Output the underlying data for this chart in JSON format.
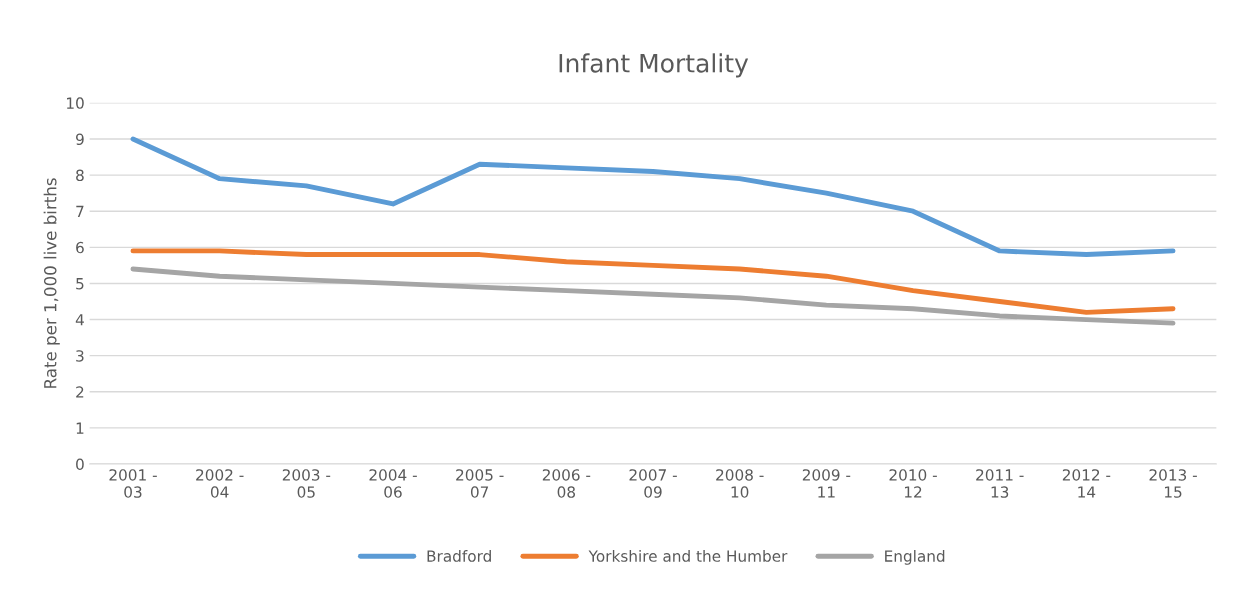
{
  "chart_data": {
    "type": "line",
    "title": "Infant Mortality",
    "ylabel": "Rate per 1,000 live births",
    "categories": [
      "2001 -\n03",
      "2002 -\n04",
      "2003 -\n05",
      "2004 -\n06",
      "2005 -\n07",
      "2006 -\n08",
      "2007 -\n09",
      "2008 -\n10",
      "2009 -\n11",
      "2010 -\n12",
      "2011 -\n13",
      "2012 -\n14",
      "2013 -\n15"
    ],
    "series": [
      {
        "name": "Bradford",
        "color": "#5b9bd5",
        "values": [
          9.0,
          7.9,
          7.7,
          7.2,
          8.3,
          8.2,
          8.1,
          7.9,
          7.5,
          7.0,
          5.9,
          5.8,
          5.9
        ]
      },
      {
        "name": "Yorkshire and the Humber",
        "color": "#ed7d31",
        "values": [
          5.9,
          5.9,
          5.8,
          5.8,
          5.8,
          5.6,
          5.5,
          5.4,
          5.2,
          4.8,
          4.5,
          4.2,
          4.3
        ]
      },
      {
        "name": "England",
        "color": "#a5a5a5",
        "values": [
          5.4,
          5.2,
          5.1,
          5.0,
          4.9,
          4.8,
          4.7,
          4.6,
          4.4,
          4.3,
          4.1,
          4.0,
          3.9
        ]
      }
    ],
    "ylim": [
      0,
      10
    ],
    "yticks": [
      0,
      1,
      2,
      3,
      4,
      5,
      6,
      7,
      8,
      9,
      10
    ],
    "grid": "y",
    "legend": "bottom",
    "marker": "none",
    "line_style": "solid"
  }
}
